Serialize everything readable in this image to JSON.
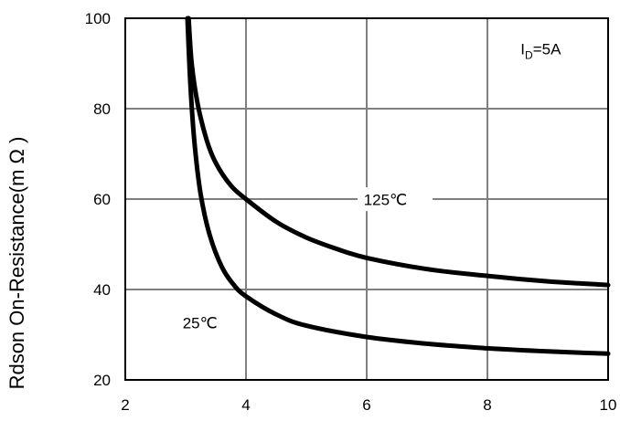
{
  "chart_data": {
    "type": "line",
    "title": "",
    "xlabel": "",
    "ylabel": "Rdson On-Resistance(m Ω )",
    "xlim": [
      2,
      10
    ],
    "ylim": [
      20,
      100
    ],
    "x_ticks": [
      "2",
      "4",
      "6",
      "8",
      "10"
    ],
    "y_ticks": [
      "20",
      "40",
      "60",
      "80",
      "100"
    ],
    "grid": true,
    "annotations": {
      "condition_main": "I",
      "condition_sub": "D",
      "condition_tail": "=5A"
    },
    "series": [
      {
        "name": "125℃",
        "x": [
          3.05,
          3.1,
          3.2,
          3.35,
          3.5,
          3.75,
          4.0,
          4.5,
          5.0,
          5.5,
          6.0,
          7.0,
          8.0,
          9.0,
          10.0
        ],
        "y": [
          100,
          90,
          81,
          73,
          68,
          63,
          60,
          55,
          51.5,
          49,
          47,
          44.5,
          43,
          41.8,
          41
        ]
      },
      {
        "name": "25℃",
        "x": [
          3.03,
          3.08,
          3.15,
          3.25,
          3.4,
          3.6,
          3.8,
          4.0,
          4.5,
          5.0,
          6.0,
          7.0,
          8.0,
          9.0,
          10.0
        ],
        "y": [
          100,
          85,
          72,
          61,
          52,
          45,
          41,
          38.5,
          34.5,
          32,
          29.5,
          28,
          27,
          26.3,
          25.8
        ]
      }
    ]
  }
}
